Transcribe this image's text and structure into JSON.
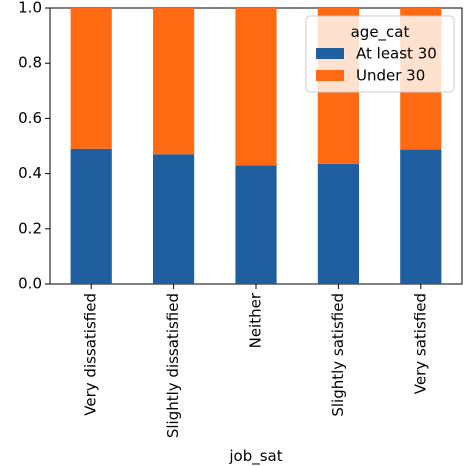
{
  "chart_data": {
    "type": "bar",
    "stacked": true,
    "categories": [
      "Very dissatisfied",
      "Slightly dissatisfied",
      "Neither",
      "Slightly satisfied",
      "Very satisfied"
    ],
    "series": [
      {
        "name": "At least 30",
        "color": "#1f5fa0",
        "values": [
          0.49,
          0.47,
          0.43,
          0.435,
          0.487
        ]
      },
      {
        "name": "Under 30",
        "color": "#ff6a13",
        "values": [
          0.51,
          0.53,
          0.57,
          0.565,
          0.513
        ]
      }
    ],
    "title": "",
    "xlabel": "job_sat",
    "ylabel": "",
    "ylim": [
      0,
      1.0
    ],
    "yticks": [
      "0.0",
      "0.2",
      "0.4",
      "0.6",
      "0.8",
      "1.0"
    ],
    "grid": false,
    "legend": {
      "title": "age_cat",
      "position": "top-right"
    }
  }
}
